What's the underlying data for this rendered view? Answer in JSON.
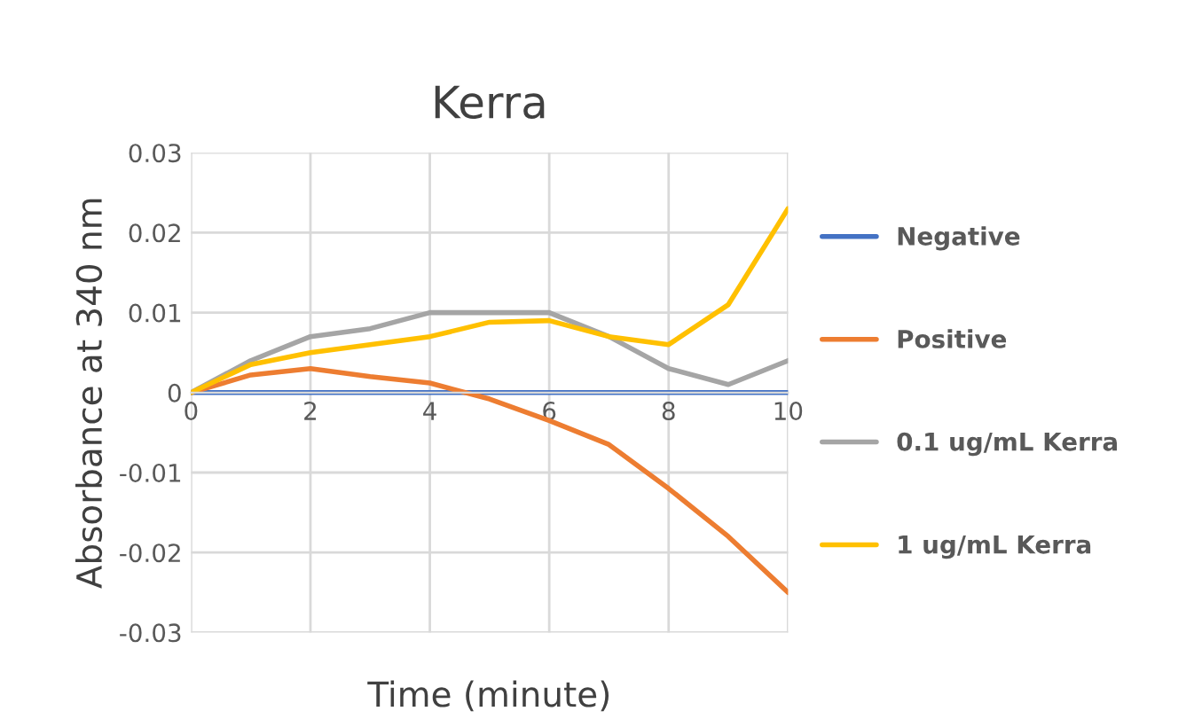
{
  "chart_data": {
    "type": "line",
    "title": "Kerra",
    "xlabel": "Time (minute)",
    "ylabel": "Absorbance at 340 nm",
    "x": [
      0,
      1,
      2,
      3,
      4,
      5,
      6,
      7,
      8,
      9,
      10
    ],
    "series": [
      {
        "name": "Negative",
        "color": "#4472c4",
        "values": [
          0,
          0,
          0,
          0,
          0,
          0,
          0,
          0,
          0,
          0,
          0
        ]
      },
      {
        "name": "Positive",
        "color": "#ed7d31",
        "values": [
          0,
          0.0022,
          0.003,
          0.002,
          0.0012,
          -0.0008,
          -0.0035,
          -0.0065,
          -0.012,
          -0.018,
          -0.025
        ]
      },
      {
        "name": "0.1 ug/mL Kerra",
        "color": "#a5a5a5",
        "values": [
          0,
          0.004,
          0.007,
          0.008,
          0.01,
          0.01,
          0.01,
          0.007,
          0.003,
          0.001,
          0.004
        ]
      },
      {
        "name": "1 ug/mL Kerra",
        "color": "#ffc000",
        "values": [
          0,
          0.0035,
          0.005,
          0.006,
          0.007,
          0.0088,
          0.009,
          0.007,
          0.006,
          0.011,
          0.023
        ]
      }
    ],
    "xlim": [
      0,
      10
    ],
    "xticks": [
      0,
      2,
      4,
      6,
      8,
      10
    ],
    "ylim": [
      -0.03,
      0.03
    ],
    "yticks": [
      -0.03,
      -0.02,
      -0.01,
      0,
      0.01,
      0.02,
      0.03
    ],
    "grid": true,
    "legend": "right",
    "marker": "none",
    "line_style": "solid"
  }
}
